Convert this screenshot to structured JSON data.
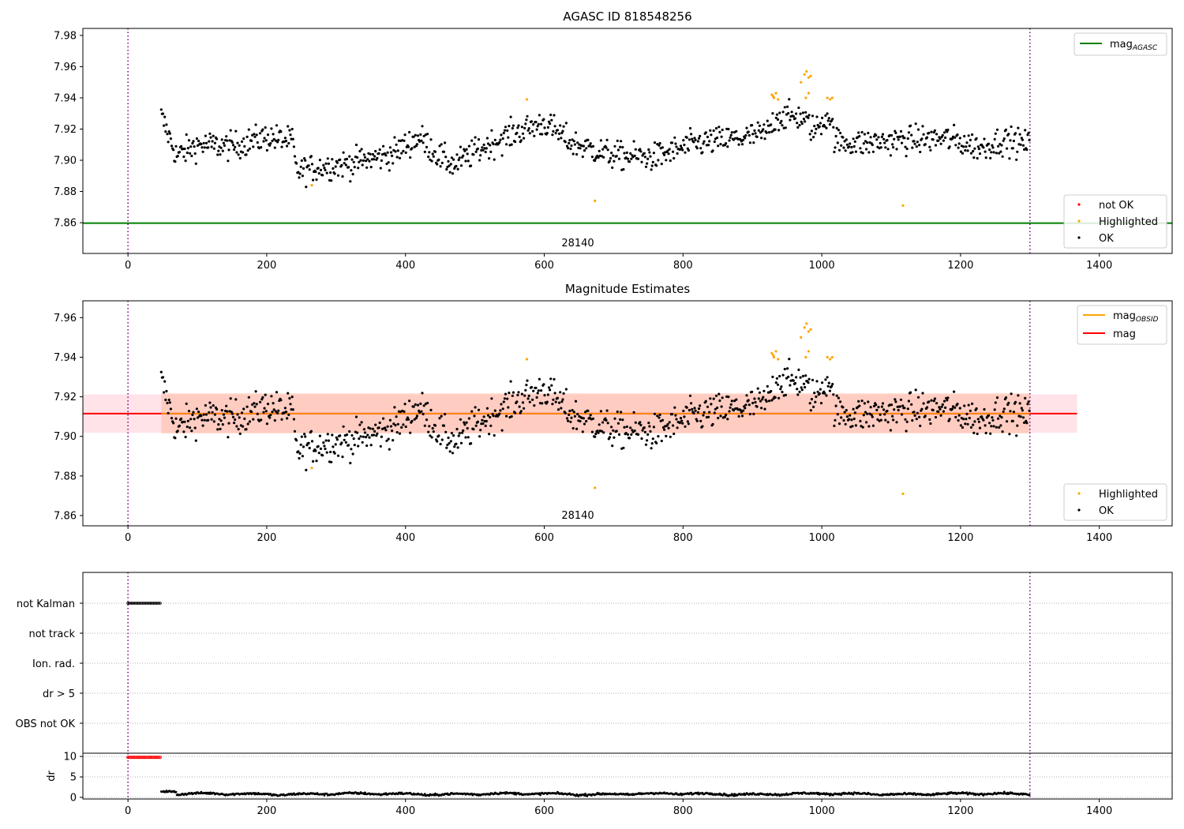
{
  "chart_data": [
    {
      "type": "scatter",
      "title": "AGASC ID 818548256",
      "xlim": [
        -65,
        1505
      ],
      "ylim": [
        7.8403,
        7.9845
      ],
      "xticks": [
        0,
        200,
        400,
        600,
        800,
        1000,
        1200,
        1400
      ],
      "yticks": [
        7.86,
        7.88,
        7.9,
        7.92,
        7.94,
        7.96,
        7.98
      ],
      "vlines": [
        0,
        1300
      ],
      "reference_line": {
        "name": "mag",
        "subscript": "AGASC",
        "value": 7.8597
      },
      "annotation": {
        "text": "28140",
        "x": 650,
        "y": 7.8475
      },
      "legend_top": [
        {
          "label": "mag",
          "subscript": "AGASC",
          "color": "#008000"
        }
      ],
      "legend_bottom": [
        {
          "label": "not OK",
          "color": "#ff0000"
        },
        {
          "label": "Highlighted",
          "color": "#ffa500"
        },
        {
          "label": "OK",
          "color": "#000000"
        }
      ],
      "trend": [
        [
          48,
          7.928
        ],
        [
          70,
          7.903
        ],
        [
          100,
          7.91
        ],
        [
          150,
          7.909
        ],
        [
          200,
          7.915
        ],
        [
          238,
          7.912
        ],
        [
          242,
          7.893
        ],
        [
          280,
          7.896
        ],
        [
          320,
          7.898
        ],
        [
          380,
          7.904
        ],
        [
          420,
          7.915
        ],
        [
          450,
          7.902
        ],
        [
          470,
          7.897
        ],
        [
          510,
          7.908
        ],
        [
          560,
          7.918
        ],
        [
          600,
          7.924
        ],
        [
          640,
          7.911
        ],
        [
          700,
          7.903
        ],
        [
          760,
          7.902
        ],
        [
          820,
          7.911
        ],
        [
          880,
          7.914
        ],
        [
          920,
          7.917
        ],
        [
          935,
          7.928
        ],
        [
          970,
          7.928
        ],
        [
          990,
          7.919
        ],
        [
          1010,
          7.93
        ],
        [
          1020,
          7.912
        ],
        [
          1060,
          7.911
        ],
        [
          1120,
          7.913
        ],
        [
          1180,
          7.914
        ],
        [
          1230,
          7.908
        ],
        [
          1260,
          7.913
        ],
        [
          1300,
          7.91
        ]
      ],
      "highlighted": [
        [
          575,
          7.939
        ],
        [
          673,
          7.874
        ],
        [
          265,
          7.884
        ],
        [
          928,
          7.942
        ],
        [
          931,
          7.94
        ],
        [
          934,
          7.943
        ],
        [
          937,
          7.939
        ],
        [
          930,
          7.941
        ],
        [
          975,
          7.955
        ],
        [
          978,
          7.957
        ],
        [
          981,
          7.953
        ],
        [
          984,
          7.954
        ],
        [
          970,
          7.95
        ],
        [
          977,
          7.94
        ],
        [
          981,
          7.943
        ],
        [
          1008,
          7.94
        ],
        [
          1012,
          7.939
        ],
        [
          1015,
          7.94
        ],
        [
          1117,
          7.871
        ]
      ]
    },
    {
      "type": "scatter",
      "title": "Magnitude Estimates",
      "xlim": [
        -65,
        1505
      ],
      "ylim": [
        7.8548,
        7.9685
      ],
      "xticks": [
        0,
        200,
        400,
        600,
        800,
        1000,
        1200,
        1400
      ],
      "yticks": [
        7.86,
        7.88,
        7.9,
        7.92,
        7.94,
        7.96
      ],
      "vlines": [
        0,
        1300
      ],
      "mag_line": 7.9115,
      "mag_band": [
        7.9018,
        7.9212
      ],
      "obsid_band": [
        7.9015,
        7.9218
      ],
      "annotation": {
        "text": "28140",
        "x": 650,
        "y": 7.8595
      },
      "legend_top": [
        {
          "label": "mag",
          "subscript": "OBSID",
          "color": "#ffa500"
        },
        {
          "label": "mag",
          "subscript": "",
          "color": "#ff0000"
        }
      ],
      "legend_bottom": [
        {
          "label": "Highlighted",
          "color": "#ffa500"
        },
        {
          "label": "OK",
          "color": "#000000"
        }
      ]
    },
    {
      "type": "scatter",
      "xlim": [
        -65,
        1505
      ],
      "xticks": [
        0,
        200,
        400,
        600,
        800,
        1000,
        1200,
        1400
      ],
      "categories": [
        "not Kalman",
        "not track",
        "Ion. rad.",
        "dr > 5",
        "OBS not OK"
      ],
      "flag_range": [
        0,
        48
      ],
      "vlines": [
        0,
        1300
      ]
    },
    {
      "type": "scatter",
      "ylabel": "dr",
      "xlim": [
        -65,
        1505
      ],
      "ylim": [
        -0.4,
        10.8
      ],
      "yticks": [
        0,
        5,
        10
      ],
      "xticks": [
        0,
        200,
        400,
        600,
        800,
        1000,
        1200,
        1400
      ],
      "capped_range": [
        0,
        48
      ],
      "capped_value": 9.8,
      "vlines": [
        0,
        1300
      ]
    }
  ]
}
